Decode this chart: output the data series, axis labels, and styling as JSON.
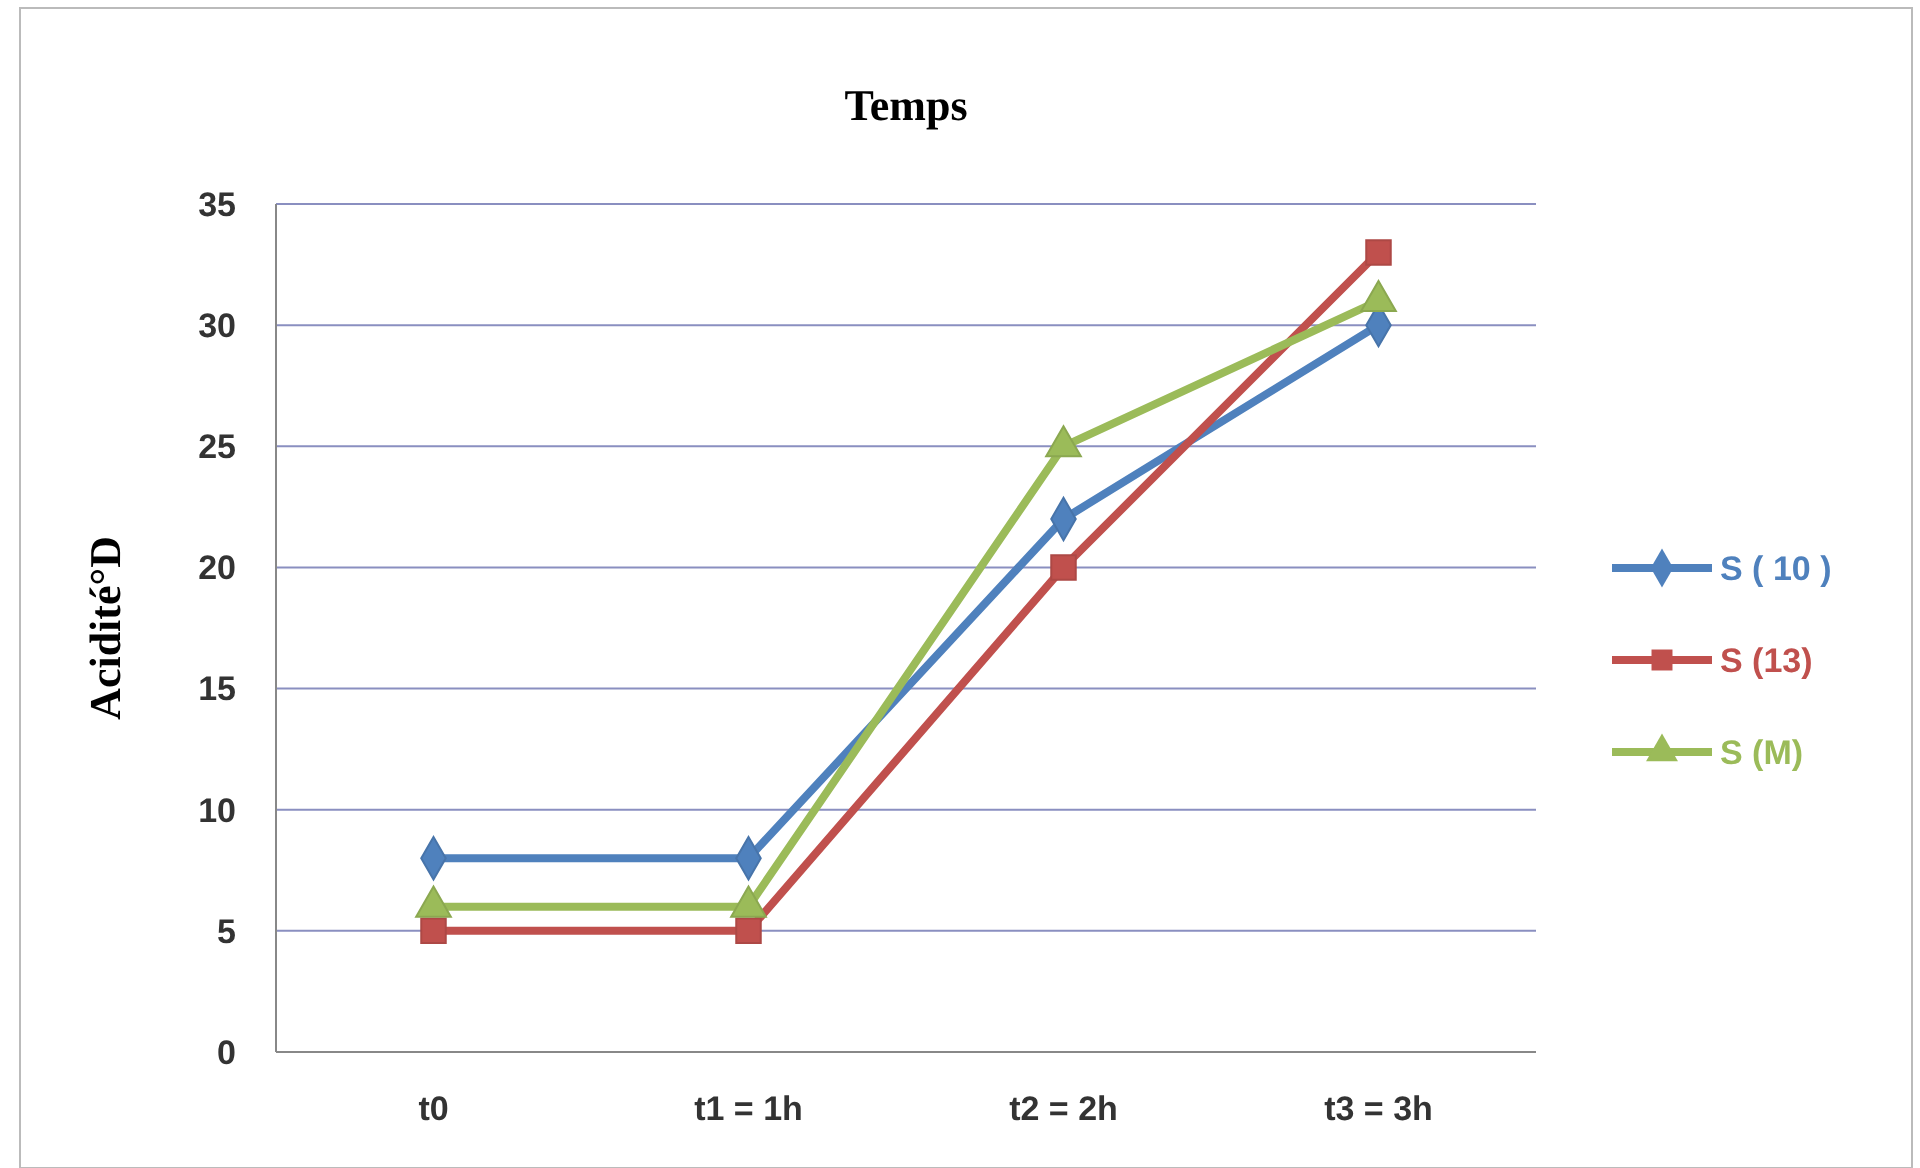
{
  "chart_data": {
    "type": "line",
    "title": "Temps",
    "ylabel": "Acidité°D",
    "categories": [
      "t0",
      "t1 = 1h",
      "t2 = 2h",
      "t3 = 3h"
    ],
    "series": [
      {
        "name": "S  ( 10 )",
        "color": "#4f81bd",
        "values": [
          8,
          8,
          22,
          30
        ],
        "marker": "diamond"
      },
      {
        "name": "S (13)",
        "color": "#c0504d",
        "values": [
          5,
          5,
          20,
          33
        ],
        "marker": "square"
      },
      {
        "name": "S (M)",
        "color": "#9bbb59",
        "values": [
          6,
          6,
          25,
          31
        ],
        "marker": "triangle"
      }
    ],
    "ylim": [
      0,
      35
    ],
    "yticks": [
      0,
      5,
      10,
      15,
      20,
      25,
      30,
      35
    ],
    "grid": "y",
    "legend": "right",
    "line_style": "solid"
  }
}
